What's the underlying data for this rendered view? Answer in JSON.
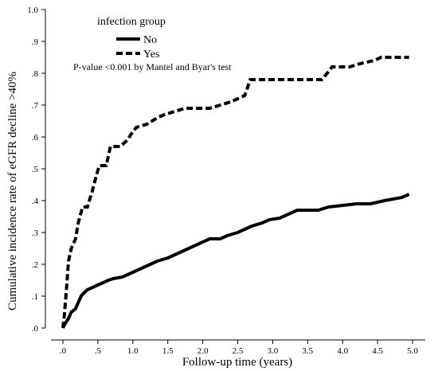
{
  "chart_data": {
    "type": "line",
    "title": "",
    "xlabel": "Follow-up time (years)",
    "ylabel": "Cumulative incidence rate of eGFR decline >40%",
    "xlim": [
      0,
      5
    ],
    "ylim": [
      0,
      1
    ],
    "x_ticks": [
      {
        "value": 0.0,
        "label": ".0"
      },
      {
        "value": 0.5,
        "label": ".5"
      },
      {
        "value": 1.0,
        "label": "1.0"
      },
      {
        "value": 1.5,
        "label": "1.5"
      },
      {
        "value": 2.0,
        "label": "2.0"
      },
      {
        "value": 2.5,
        "label": "2.5"
      },
      {
        "value": 3.0,
        "label": "3.0"
      },
      {
        "value": 3.5,
        "label": "3.5"
      },
      {
        "value": 4.0,
        "label": "4.0"
      },
      {
        "value": 4.5,
        "label": "4.5"
      },
      {
        "value": 5.0,
        "label": "5.0"
      }
    ],
    "y_ticks": [
      {
        "value": 0.0,
        "label": ".0"
      },
      {
        "value": 0.1,
        "label": ".1"
      },
      {
        "value": 0.2,
        "label": ".2"
      },
      {
        "value": 0.3,
        "label": ".3"
      },
      {
        "value": 0.4,
        "label": ".4"
      },
      {
        "value": 0.5,
        "label": ".5"
      },
      {
        "value": 0.6,
        "label": ".6"
      },
      {
        "value": 0.7,
        "label": ".7"
      },
      {
        "value": 0.8,
        "label": ".8"
      },
      {
        "value": 0.9,
        "label": ".9"
      },
      {
        "value": 1.0,
        "label": "1.0"
      }
    ],
    "grid": false,
    "legend": {
      "title": "infection group",
      "placement": "top-left",
      "entries": [
        "No",
        "Yes"
      ]
    },
    "annotation": "P-value <0.001 by Mantel and Byar's test",
    "series": [
      {
        "name": "No",
        "style": "solid",
        "points": [
          [
            0.0,
            0.0
          ],
          [
            0.02,
            0.01
          ],
          [
            0.05,
            0.02
          ],
          [
            0.08,
            0.03
          ],
          [
            0.12,
            0.05
          ],
          [
            0.18,
            0.06
          ],
          [
            0.22,
            0.08
          ],
          [
            0.26,
            0.1
          ],
          [
            0.3,
            0.11
          ],
          [
            0.35,
            0.12
          ],
          [
            0.45,
            0.13
          ],
          [
            0.55,
            0.14
          ],
          [
            0.65,
            0.15
          ],
          [
            0.72,
            0.155
          ],
          [
            0.85,
            0.16
          ],
          [
            0.95,
            0.17
          ],
          [
            1.05,
            0.18
          ],
          [
            1.15,
            0.19
          ],
          [
            1.25,
            0.2
          ],
          [
            1.35,
            0.21
          ],
          [
            1.5,
            0.22
          ],
          [
            1.6,
            0.23
          ],
          [
            1.7,
            0.24
          ],
          [
            1.8,
            0.25
          ],
          [
            1.9,
            0.26
          ],
          [
            2.0,
            0.27
          ],
          [
            2.1,
            0.28
          ],
          [
            2.25,
            0.28
          ],
          [
            2.35,
            0.29
          ],
          [
            2.5,
            0.3
          ],
          [
            2.6,
            0.31
          ],
          [
            2.7,
            0.32
          ],
          [
            2.85,
            0.33
          ],
          [
            2.95,
            0.34
          ],
          [
            3.1,
            0.345
          ],
          [
            3.25,
            0.36
          ],
          [
            3.35,
            0.37
          ],
          [
            3.5,
            0.37
          ],
          [
            3.65,
            0.37
          ],
          [
            3.8,
            0.38
          ],
          [
            4.0,
            0.385
          ],
          [
            4.2,
            0.39
          ],
          [
            4.4,
            0.39
          ],
          [
            4.6,
            0.4
          ],
          [
            4.85,
            0.41
          ],
          [
            4.95,
            0.42
          ]
        ]
      },
      {
        "name": "Yes",
        "style": "dashed",
        "points": [
          [
            0.0,
            0.0
          ],
          [
            0.02,
            0.04
          ],
          [
            0.05,
            0.12
          ],
          [
            0.08,
            0.21
          ],
          [
            0.12,
            0.25
          ],
          [
            0.18,
            0.28
          ],
          [
            0.22,
            0.33
          ],
          [
            0.28,
            0.38
          ],
          [
            0.35,
            0.38
          ],
          [
            0.42,
            0.43
          ],
          [
            0.48,
            0.48
          ],
          [
            0.52,
            0.51
          ],
          [
            0.62,
            0.51
          ],
          [
            0.68,
            0.57
          ],
          [
            0.75,
            0.57
          ],
          [
            0.82,
            0.57
          ],
          [
            0.92,
            0.59
          ],
          [
            0.98,
            0.61
          ],
          [
            1.05,
            0.63
          ],
          [
            1.2,
            0.64
          ],
          [
            1.35,
            0.66
          ],
          [
            1.45,
            0.67
          ],
          [
            1.6,
            0.68
          ],
          [
            1.75,
            0.69
          ],
          [
            1.9,
            0.69
          ],
          [
            2.1,
            0.69
          ],
          [
            2.25,
            0.7
          ],
          [
            2.4,
            0.71
          ],
          [
            2.5,
            0.72
          ],
          [
            2.6,
            0.73
          ],
          [
            2.68,
            0.78
          ],
          [
            2.8,
            0.78
          ],
          [
            3.0,
            0.78
          ],
          [
            3.4,
            0.78
          ],
          [
            3.7,
            0.78
          ],
          [
            3.78,
            0.8
          ],
          [
            3.85,
            0.82
          ],
          [
            4.1,
            0.82
          ],
          [
            4.25,
            0.83
          ],
          [
            4.45,
            0.84
          ],
          [
            4.55,
            0.85
          ],
          [
            4.7,
            0.85
          ],
          [
            4.95,
            0.85
          ]
        ]
      }
    ]
  }
}
